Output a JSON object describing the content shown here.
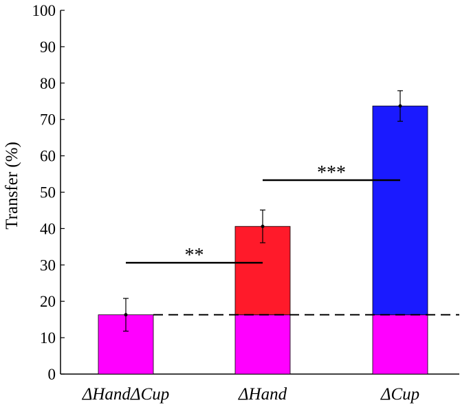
{
  "chart_data": {
    "type": "bar",
    "ylabel": "Transfer (%)",
    "ylim": [
      0,
      100
    ],
    "yticks": [
      "0",
      "10",
      "20",
      "30",
      "40",
      "50",
      "60",
      "70",
      "80",
      "90",
      "100"
    ],
    "categories": [
      "ΔHandΔCup",
      "ΔHand",
      "ΔCup"
    ],
    "baseline": 16.3,
    "values": [
      16.3,
      40.6,
      73.7
    ],
    "errors": [
      4.5,
      4.5,
      4.2
    ],
    "colors": {
      "baseline": "#ff00ff",
      "ΔHand": "#ff1a2a",
      "ΔCup": "#1a1aff"
    },
    "significance": [
      {
        "from": "ΔHandΔCup",
        "to": "ΔHand",
        "y": 30.6,
        "label": "**"
      },
      {
        "from": "ΔHand",
        "to": "ΔCup",
        "y": 53.3,
        "label": "***"
      }
    ]
  }
}
